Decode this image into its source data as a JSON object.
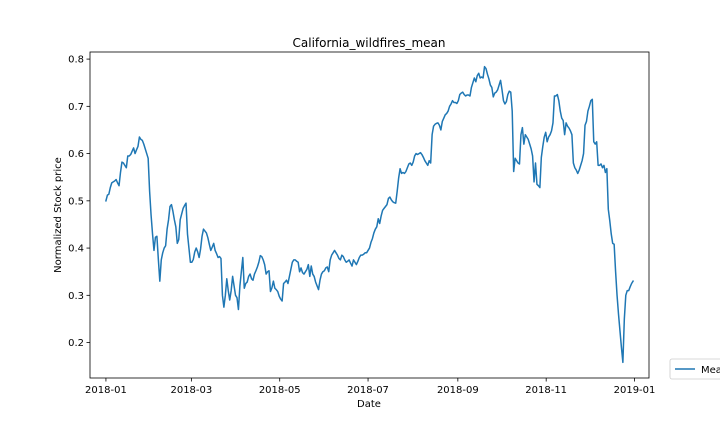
{
  "chart_data": {
    "type": "line",
    "title": "California_wildfires_mean",
    "xlabel": "Date",
    "ylabel": "Normalized Stock price",
    "x_start": "2018-01-01",
    "x_end": "2018-12-31",
    "xlim": [
      "2017-12-21",
      "2019-01-11"
    ],
    "ylim": [
      0.125,
      0.815
    ],
    "x_ticks": [
      "2018-01",
      "2018-03",
      "2018-05",
      "2018-07",
      "2018-09",
      "2018-11",
      "2019-01"
    ],
    "y_ticks": [
      "0.2",
      "0.3",
      "0.4",
      "0.5",
      "0.6",
      "0.7",
      "0.8"
    ],
    "grid": false,
    "legend_position": "right, outside the plot, partially cut off",
    "series": [
      {
        "name": "Mean",
        "color": "#1f77b4",
        "values": [
          0.5,
          0.512,
          0.514,
          0.528,
          0.538,
          0.54,
          0.542,
          0.545,
          0.538,
          0.532,
          0.56,
          0.582,
          0.58,
          0.575,
          0.57,
          0.595,
          0.595,
          0.598,
          0.605,
          0.612,
          0.6,
          0.608,
          0.615,
          0.635,
          0.63,
          0.628,
          0.62,
          0.61,
          0.6,
          0.59,
          0.52,
          0.47,
          0.43,
          0.395,
          0.423,
          0.425,
          0.376,
          0.33,
          0.375,
          0.39,
          0.4,
          0.405,
          0.44,
          0.46,
          0.488,
          0.492,
          0.478,
          0.46,
          0.445,
          0.41,
          0.418,
          0.46,
          0.472,
          0.484,
          0.49,
          0.495,
          0.43,
          0.4,
          0.37,
          0.37,
          0.376,
          0.392,
          0.4,
          0.392,
          0.38,
          0.398,
          0.425,
          0.44,
          0.436,
          0.432,
          0.422,
          0.408,
          0.395,
          0.402,
          0.41,
          0.395,
          0.388,
          0.38,
          0.382,
          0.378,
          0.3,
          0.275,
          0.3,
          0.335,
          0.31,
          0.29,
          0.31,
          0.34,
          0.32,
          0.3,
          0.295,
          0.27,
          0.32,
          0.35,
          0.38,
          0.315,
          0.325,
          0.328,
          0.34,
          0.345,
          0.335,
          0.332,
          0.345,
          0.352,
          0.36,
          0.37,
          0.384,
          0.382,
          0.375,
          0.365,
          0.345,
          0.35,
          0.352,
          0.308,
          0.316,
          0.33,
          0.315,
          0.312,
          0.308,
          0.298,
          0.292,
          0.288,
          0.325,
          0.328,
          0.332,
          0.325,
          0.34,
          0.355,
          0.37,
          0.375,
          0.375,
          0.372,
          0.37,
          0.35,
          0.358,
          0.348,
          0.345,
          0.35,
          0.355,
          0.365,
          0.34,
          0.362,
          0.345,
          0.34,
          0.328,
          0.32,
          0.312,
          0.332,
          0.345,
          0.35,
          0.352,
          0.358,
          0.36,
          0.35,
          0.375,
          0.385,
          0.39,
          0.395,
          0.39,
          0.385,
          0.378,
          0.375,
          0.385,
          0.382,
          0.375,
          0.37,
          0.372,
          0.375,
          0.368,
          0.362,
          0.375,
          0.37,
          0.365,
          0.372,
          0.38,
          0.385,
          0.385,
          0.387,
          0.39,
          0.39,
          0.395,
          0.4,
          0.412,
          0.42,
          0.432,
          0.44,
          0.445,
          0.462,
          0.452,
          0.468,
          0.48,
          0.484,
          0.488,
          0.492,
          0.505,
          0.508,
          0.502,
          0.498,
          0.496,
          0.495,
          0.52,
          0.548,
          0.568,
          0.558,
          0.56,
          0.558,
          0.562,
          0.57,
          0.578,
          0.58,
          0.575,
          0.582,
          0.595,
          0.6,
          0.598,
          0.6,
          0.602,
          0.598,
          0.592,
          0.585,
          0.58,
          0.575,
          0.585,
          0.58,
          0.64,
          0.658,
          0.662,
          0.664,
          0.665,
          0.66,
          0.65,
          0.668,
          0.675,
          0.682,
          0.685,
          0.69,
          0.7,
          0.705,
          0.712,
          0.708,
          0.708,
          0.706,
          0.712,
          0.725,
          0.728,
          0.73,
          0.725,
          0.722,
          0.724,
          0.724,
          0.722,
          0.74,
          0.75,
          0.76,
          0.752,
          0.765,
          0.77,
          0.76,
          0.762,
          0.76,
          0.784,
          0.78,
          0.768,
          0.758,
          0.745,
          0.74,
          0.72,
          0.728,
          0.73,
          0.735,
          0.745,
          0.755,
          0.735,
          0.712,
          0.705,
          0.71,
          0.725,
          0.732,
          0.73,
          0.69,
          0.562,
          0.59,
          0.585,
          0.58,
          0.578,
          0.64,
          0.655,
          0.62,
          0.64,
          0.635,
          0.63,
          0.62,
          0.61,
          0.595,
          0.54,
          0.58,
          0.535,
          0.532,
          0.528,
          0.592,
          0.615,
          0.635,
          0.645,
          0.625,
          0.635,
          0.64,
          0.648,
          0.665,
          0.722,
          0.722,
          0.725,
          0.712,
          0.69,
          0.675,
          0.67,
          0.64,
          0.665,
          0.658,
          0.654,
          0.648,
          0.64,
          0.58,
          0.57,
          0.565,
          0.558,
          0.565,
          0.575,
          0.585,
          0.6,
          0.66,
          0.668,
          0.69,
          0.7,
          0.712,
          0.715,
          0.625,
          0.62,
          0.625,
          0.575,
          0.575,
          0.578,
          0.57,
          0.575,
          0.56,
          0.568,
          0.482,
          0.458,
          0.43,
          0.41,
          0.408,
          0.35,
          0.3,
          0.26,
          0.225,
          0.19,
          0.158,
          0.25,
          0.3,
          0.31,
          0.31,
          0.318,
          0.325,
          0.33
        ]
      }
    ]
  }
}
